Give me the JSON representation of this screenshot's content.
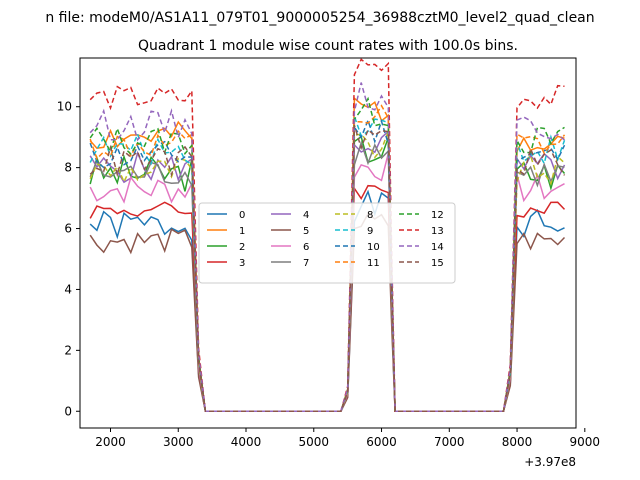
{
  "suptitle": "n file: modeM0/AS1A11_079T01_9000005254_36988cztM0_level2_quad_clean",
  "chart_data": {
    "type": "line",
    "title": "Quadrant 1 module wise count rates with 100.0s bins.",
    "xlabel": "",
    "ylabel": "",
    "x_offset_label": "+3.97e8",
    "xlim": [
      1550,
      8870
    ],
    "ylim": [
      -0.55,
      11.6
    ],
    "xticks": [
      2000,
      3000,
      4000,
      5000,
      6000,
      7000,
      8000,
      9000
    ],
    "yticks": [
      0,
      2,
      4,
      6,
      8,
      10
    ],
    "grid": false,
    "legend_position": "center",
    "legend_ncol": 4,
    "series": [
      {
        "name": "0",
        "color": "#1f77b4",
        "dash": false,
        "base": 6.1,
        "var": 0.5,
        "seed": 1
      },
      {
        "name": "1",
        "color": "#ff7f0e",
        "dash": false,
        "base": 9.0,
        "var": 0.5,
        "seed": 2
      },
      {
        "name": "2",
        "color": "#2ca02c",
        "dash": false,
        "base": 7.8,
        "var": 0.6,
        "seed": 3
      },
      {
        "name": "3",
        "color": "#d62728",
        "dash": false,
        "base": 6.6,
        "var": 0.3,
        "seed": 4
      },
      {
        "name": "4",
        "color": "#9467bd",
        "dash": false,
        "base": 8.0,
        "var": 0.5,
        "seed": 5
      },
      {
        "name": "5",
        "color": "#8c564b",
        "dash": false,
        "base": 5.6,
        "var": 0.4,
        "seed": 6
      },
      {
        "name": "6",
        "color": "#e377c2",
        "dash": false,
        "base": 7.3,
        "var": 0.5,
        "seed": 7
      },
      {
        "name": "7",
        "color": "#7f7f7f",
        "dash": false,
        "base": 7.8,
        "var": 0.5,
        "seed": 8
      },
      {
        "name": "8",
        "color": "#bcbd22",
        "dash": true,
        "base": 7.9,
        "var": 0.5,
        "seed": 9
      },
      {
        "name": "9",
        "color": "#17becf",
        "dash": true,
        "base": 8.6,
        "var": 0.5,
        "seed": 10
      },
      {
        "name": "10",
        "color": "#1f77b4",
        "dash": true,
        "base": 8.4,
        "var": 0.5,
        "seed": 11
      },
      {
        "name": "11",
        "color": "#ff7f0e",
        "dash": true,
        "base": 8.7,
        "var": 0.5,
        "seed": 12
      },
      {
        "name": "12",
        "color": "#2ca02c",
        "dash": true,
        "base": 8.9,
        "var": 0.5,
        "seed": 13
      },
      {
        "name": "13",
        "color": "#d62728",
        "dash": true,
        "base": 10.3,
        "var": 0.4,
        "seed": 14
      },
      {
        "name": "14",
        "color": "#9467bd",
        "dash": true,
        "base": 9.4,
        "var": 0.5,
        "seed": 15
      },
      {
        "name": "15",
        "color": "#8c564b",
        "dash": true,
        "base": 8.2,
        "var": 0.5,
        "seed": 16
      }
    ],
    "segments": [
      {
        "x_start": 1700,
        "x_end": 3200,
        "level": 1.0
      },
      {
        "x_start": 5600,
        "x_end": 6100,
        "level": 1.1
      },
      {
        "x_start": 8000,
        "x_end": 8700,
        "level": 1.0
      }
    ],
    "zero_x": [
      3400,
      3500,
      3600,
      3700,
      3800,
      3900,
      4000,
      4100,
      4200,
      4300,
      4400,
      4500,
      4600,
      4700,
      4800,
      4900,
      5000,
      5100,
      5200,
      5300,
      5400,
      6200,
      6300,
      6400,
      6500,
      6600,
      6700,
      6800,
      6900,
      7000,
      7100,
      7200,
      7300,
      7400,
      7500,
      7600,
      7700,
      7800
    ],
    "edge_points": [
      {
        "x": 3300,
        "frac": 0.2
      },
      {
        "x": 5500,
        "frac": 0.08
      },
      {
        "x": 6150,
        "frac": 0.5
      },
      {
        "x": 7900,
        "frac": 0.15
      }
    ]
  }
}
